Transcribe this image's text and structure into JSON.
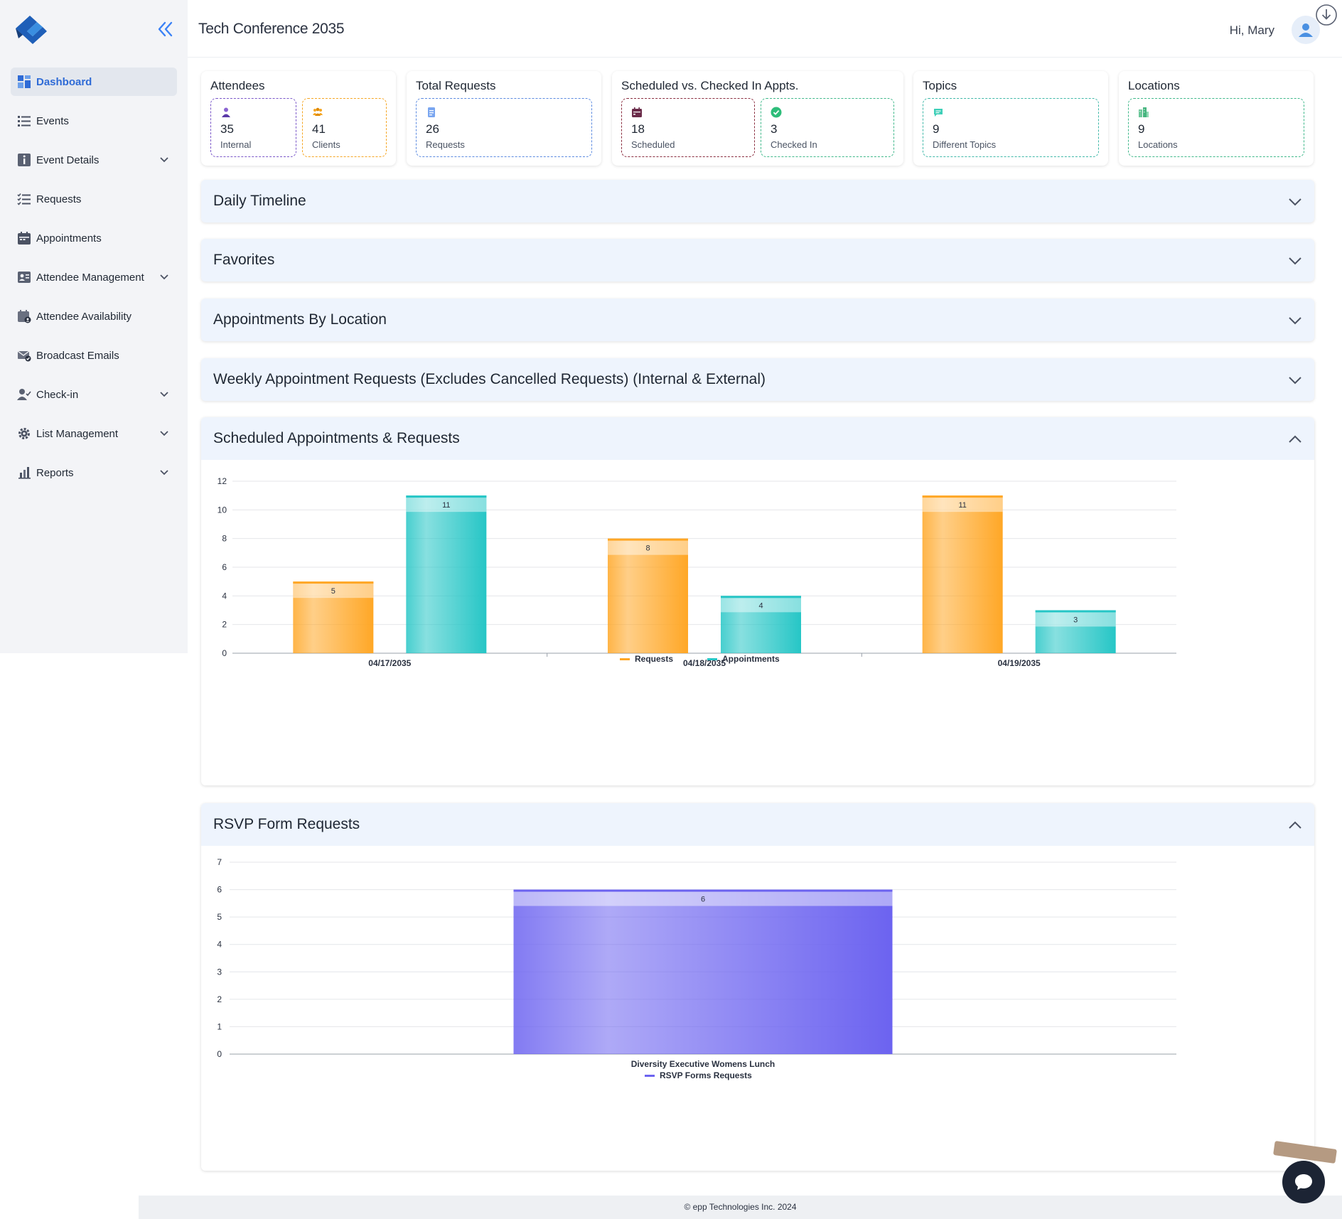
{
  "sidebar": {
    "items": [
      {
        "label": "Dashboard",
        "icon": "dashboard-icon",
        "active": true
      },
      {
        "label": "Events",
        "icon": "list-icon"
      },
      {
        "label": "Event Details",
        "icon": "info-icon",
        "expandable": true
      },
      {
        "label": "Requests",
        "icon": "checklist-icon"
      },
      {
        "label": "Appointments",
        "icon": "calendar-icon"
      },
      {
        "label": "Attendee Management",
        "icon": "id-card-icon",
        "expandable": true
      },
      {
        "label": "Attendee Availability",
        "icon": "calendar-person-icon"
      },
      {
        "label": "Broadcast Emails",
        "icon": "envelope-icon"
      },
      {
        "label": "Check-in",
        "icon": "person-check-icon",
        "expandable": true
      },
      {
        "label": "List Management",
        "icon": "gear-icon",
        "expandable": true
      },
      {
        "label": "Reports",
        "icon": "bar-chart-icon",
        "expandable": true
      }
    ]
  },
  "header": {
    "event_title": "Tech Conference 2035",
    "greeting": "Hi, Mary"
  },
  "stats": {
    "attendees": {
      "title": "Attendees",
      "internal": {
        "value": "35",
        "label": "Internal"
      },
      "clients": {
        "value": "41",
        "label": "Clients"
      }
    },
    "requests": {
      "title": "Total Requests",
      "total": {
        "value": "26",
        "label": "Requests"
      }
    },
    "appointments": {
      "title": "Scheduled vs. Checked In Appts.",
      "scheduled": {
        "value": "18",
        "label": "Scheduled"
      },
      "checked_in": {
        "value": "3",
        "label": "Checked In"
      }
    },
    "topics": {
      "title": "Topics",
      "count": {
        "value": "9",
        "label": "Different Topics"
      }
    },
    "locations": {
      "title": "Locations",
      "count": {
        "value": "9",
        "label": "Locations"
      }
    }
  },
  "accordions": {
    "daily_timeline": "Daily Timeline",
    "favorites": "Favorites",
    "by_location": "Appointments By Location",
    "weekly": "Weekly Appointment Requests (Excludes Cancelled Requests) (Internal & External)",
    "scheduled": "Scheduled Appointments & Requests",
    "rsvp": "RSVP Form Requests"
  },
  "colors": {
    "requests": "#ffa726",
    "appointments": "#26c6c6",
    "rsvp": "#6c63f0",
    "accent": "#2f6bd6"
  },
  "chart_data": [
    {
      "type": "bar",
      "title": "Scheduled Appointments & Requests",
      "categories": [
        "04/17/2035",
        "04/18/2035",
        "04/19/2035"
      ],
      "series": [
        {
          "name": "Requests",
          "values": [
            5,
            8,
            11
          ]
        },
        {
          "name": "Appointments",
          "values": [
            11,
            4,
            3
          ]
        }
      ],
      "ylim": [
        0,
        12
      ],
      "yticks": [
        0,
        2,
        4,
        6,
        8,
        10,
        12
      ],
      "grid": true,
      "legend": "bottom"
    },
    {
      "type": "bar",
      "title": "RSVP Form Requests",
      "categories": [
        "Diversity Executive Womens Lunch"
      ],
      "series": [
        {
          "name": "RSVP Forms Requests",
          "values": [
            6
          ]
        }
      ],
      "ylim": [
        0,
        7
      ],
      "yticks": [
        0,
        1,
        2,
        3,
        4,
        5,
        6,
        7
      ],
      "grid": true,
      "legend": "bottom"
    }
  ],
  "footer": "© epp Technologies Inc. 2024"
}
